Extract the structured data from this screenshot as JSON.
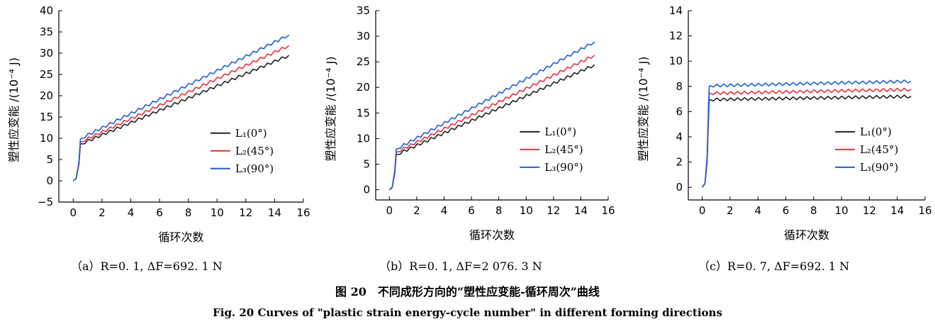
{
  "chart_data": [
    {
      "type": "line",
      "caption": "（a）R=0. 1, ΔF=692. 1 N",
      "xlabel": "循环次数",
      "ylabel": "塑性应变能 /(10⁻⁴ J)",
      "xlim": [
        -1,
        16
      ],
      "ylim": [
        -5,
        40
      ],
      "xticks": [
        0,
        2,
        4,
        6,
        8,
        10,
        12,
        14,
        16
      ],
      "yticks": [
        -5,
        0,
        5,
        10,
        15,
        20,
        25,
        30,
        35,
        40
      ],
      "legend_position": "lower-right",
      "series": [
        {
          "name": "L₁(0°)",
          "color": "#222222",
          "x": [
            0,
            0.2,
            0.4,
            0.5,
            0.55,
            15
          ],
          "y": [
            0,
            0.5,
            4.0,
            8.6,
            8.7,
            29.5
          ]
        },
        {
          "name": "L₂(45°)",
          "color": "#e8323c",
          "x": [
            0,
            0.2,
            0.4,
            0.5,
            0.55,
            15
          ],
          "y": [
            0,
            0.5,
            4.2,
            9.0,
            9.2,
            31.8
          ]
        },
        {
          "name": "L₃(90°)",
          "color": "#1f5fd6",
          "x": [
            0,
            0.2,
            0.4,
            0.5,
            0.55,
            15
          ],
          "y": [
            0,
            0.6,
            4.5,
            9.8,
            10.0,
            34.3
          ]
        }
      ]
    },
    {
      "type": "line",
      "caption": "（b）R=0. 1, ΔF=2 076. 3 N",
      "xlabel": "循环次数",
      "ylabel": "塑性应变能 /(10⁻⁴ J)",
      "xlim": [
        -1,
        16
      ],
      "ylim": [
        -2,
        35
      ],
      "xticks": [
        0,
        2,
        4,
        6,
        8,
        10,
        12,
        14,
        16
      ],
      "yticks": [
        0,
        5,
        10,
        15,
        20,
        25,
        30,
        35
      ],
      "legend_position": "lower-right",
      "series": [
        {
          "name": "L₁(0°)",
          "color": "#222222",
          "x": [
            0,
            0.2,
            0.4,
            0.5,
            0.55,
            15
          ],
          "y": [
            0,
            0.4,
            3.3,
            6.8,
            6.9,
            24.4
          ]
        },
        {
          "name": "L₂(45°)",
          "color": "#e8323c",
          "x": [
            0,
            0.2,
            0.4,
            0.5,
            0.55,
            15
          ],
          "y": [
            0,
            0.4,
            3.5,
            7.2,
            7.4,
            26.3
          ]
        },
        {
          "name": "L₃(90°)",
          "color": "#1f5fd6",
          "x": [
            0,
            0.2,
            0.4,
            0.5,
            0.55,
            15
          ],
          "y": [
            0,
            0.5,
            3.8,
            7.9,
            8.0,
            28.9
          ]
        }
      ]
    },
    {
      "type": "line",
      "caption": "（c）R=0. 7, ΔF=692. 1 N",
      "xlabel": "循环次数",
      "ylabel": "塑性应变能 /(10⁻⁴ J)",
      "xlim": [
        -1,
        16
      ],
      "ylim": [
        -1,
        14
      ],
      "xticks": [
        0,
        2,
        4,
        6,
        8,
        10,
        12,
        14,
        16
      ],
      "yticks": [
        0,
        2,
        4,
        6,
        8,
        10,
        12,
        14
      ],
      "legend_position": "lower-right",
      "series": [
        {
          "name": "L₁(0°)",
          "color": "#222222",
          "x": [
            0,
            0.2,
            0.35,
            0.45,
            0.5,
            0.55,
            15
          ],
          "y": [
            0,
            0.3,
            2.0,
            5.5,
            6.9,
            6.95,
            7.2
          ]
        },
        {
          "name": "L₂(45°)",
          "color": "#e8323c",
          "x": [
            0,
            0.2,
            0.35,
            0.45,
            0.5,
            0.55,
            15
          ],
          "y": [
            0,
            0.3,
            2.2,
            6.0,
            7.4,
            7.45,
            7.75
          ]
        },
        {
          "name": "L₃(90°)",
          "color": "#1f5fd6",
          "x": [
            0,
            0.2,
            0.35,
            0.45,
            0.5,
            0.55,
            15
          ],
          "y": [
            0,
            0.35,
            2.4,
            6.5,
            8.0,
            8.05,
            8.4
          ]
        }
      ]
    }
  ],
  "figure": {
    "title_cn": "图 20　不同成形方向的“塑性应变能-循环周次”曲线",
    "title_en": "Fig. 20    Curves of \"plastic strain energy-cycle number\" in different forming directions"
  }
}
